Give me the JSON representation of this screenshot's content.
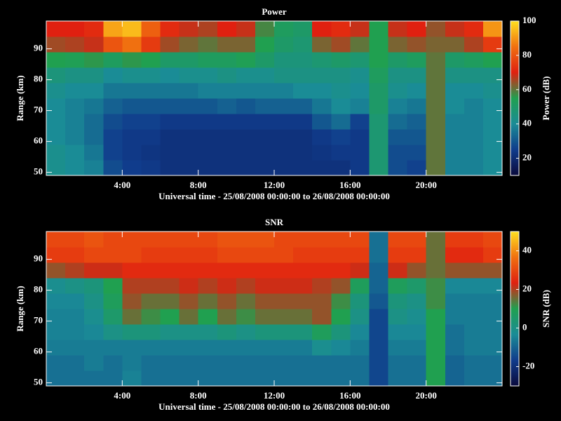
{
  "chart_data": [
    {
      "type": "heatmap",
      "title": "Power",
      "xlabel": "Universal time - 25/08/2008 00:00:00 to 26/08/2008 00:00:00",
      "ylabel": "Range (km)",
      "x_bins": [
        0,
        1,
        2,
        3,
        4,
        5,
        6,
        7,
        8,
        9,
        10,
        11,
        12,
        13,
        14,
        15,
        16,
        17,
        18,
        19,
        20,
        21,
        22,
        23,
        24
      ],
      "y_bins": [
        49,
        54,
        59,
        64,
        69,
        74,
        79,
        84,
        89,
        94,
        99
      ],
      "z": [
        [
          42,
          40,
          38,
          28,
          25,
          24,
          22,
          22,
          22,
          22,
          22,
          22,
          22,
          22,
          22,
          22,
          24,
          48,
          28,
          26,
          60,
          38,
          38,
          40
        ],
        [
          42,
          40,
          36,
          26,
          24,
          23,
          22,
          22,
          22,
          22,
          22,
          22,
          22,
          22,
          23,
          24,
          24,
          48,
          28,
          28,
          60,
          38,
          38,
          40
        ],
        [
          40,
          38,
          34,
          26,
          24,
          24,
          22,
          22,
          22,
          22,
          22,
          22,
          22,
          22,
          24,
          26,
          24,
          48,
          30,
          30,
          60,
          38,
          38,
          40
        ],
        [
          40,
          38,
          34,
          28,
          26,
          26,
          24,
          24,
          24,
          24,
          24,
          24,
          24,
          24,
          30,
          34,
          26,
          48,
          34,
          32,
          60,
          38,
          38,
          40
        ],
        [
          40,
          38,
          36,
          32,
          30,
          30,
          30,
          30,
          30,
          32,
          30,
          32,
          32,
          32,
          36,
          40,
          38,
          50,
          38,
          36,
          60,
          40,
          38,
          40
        ],
        [
          42,
          40,
          40,
          36,
          36,
          36,
          36,
          36,
          38,
          38,
          38,
          38,
          38,
          40,
          40,
          42,
          40,
          50,
          42,
          40,
          60,
          40,
          40,
          42
        ],
        [
          46,
          44,
          44,
          40,
          42,
          42,
          40,
          42,
          42,
          44,
          42,
          42,
          44,
          44,
          44,
          44,
          42,
          52,
          44,
          44,
          60,
          44,
          44,
          44
        ],
        [
          55,
          54,
          56,
          52,
          56,
          55,
          50,
          50,
          52,
          52,
          54,
          50,
          46,
          46,
          48,
          50,
          48,
          55,
          50,
          52,
          60,
          50,
          52,
          55
        ],
        [
          65,
          66,
          68,
          80,
          85,
          75,
          65,
          62,
          60,
          62,
          62,
          55,
          50,
          48,
          62,
          65,
          60,
          55,
          62,
          64,
          62,
          62,
          66,
          75
        ],
        [
          70,
          70,
          72,
          92,
          95,
          82,
          72,
          68,
          66,
          70,
          68,
          58,
          52,
          50,
          70,
          72,
          68,
          55,
          68,
          70,
          64,
          68,
          72,
          90
        ]
      ],
      "xlim": [
        0,
        24
      ],
      "ylim": [
        49,
        99
      ],
      "xticks": [
        {
          "value": 4,
          "label": "4:00"
        },
        {
          "value": 8,
          "label": "8:00"
        },
        {
          "value": 12,
          "label": "12:00"
        },
        {
          "value": 16,
          "label": "16:00"
        },
        {
          "value": 20,
          "label": "20:00"
        }
      ],
      "yticks": [
        50,
        60,
        70,
        80,
        90
      ],
      "colorscale": [
        "#0a0a3c",
        "#103c8c",
        "#1a8c96",
        "#20a050",
        "#e02010",
        "#f07010",
        "#ffe020"
      ],
      "colorbar": {
        "label": "Power (dB)",
        "lim": [
          10,
          100
        ],
        "ticks": [
          20,
          40,
          60,
          80,
          100
        ]
      }
    },
    {
      "type": "heatmap",
      "title": "SNR",
      "xlabel": "Universal time - 25/08/2008 00:00:00 to 26/08/2008 00:00:00",
      "ylabel": "Range (km)",
      "x_bins": [
        0,
        1,
        2,
        3,
        4,
        5,
        6,
        7,
        8,
        9,
        10,
        11,
        12,
        13,
        14,
        15,
        16,
        17,
        18,
        19,
        20,
        21,
        22,
        23,
        24
      ],
      "y_bins": [
        49,
        54,
        59,
        64,
        69,
        74,
        79,
        84,
        89,
        94,
        99
      ],
      "z": [
        [
          -8,
          -8,
          -8,
          -8,
          -5,
          -8,
          -8,
          -8,
          -8,
          -8,
          -8,
          -8,
          -8,
          -8,
          -8,
          -8,
          -8,
          -15,
          -8,
          -8,
          10,
          -10,
          -8,
          -8
        ],
        [
          -8,
          -8,
          -6,
          -8,
          -6,
          -8,
          -8,
          -8,
          -8,
          -8,
          -8,
          -8,
          -8,
          -8,
          -8,
          -8,
          -8,
          -15,
          -8,
          -8,
          10,
          -10,
          -8,
          -8
        ],
        [
          -6,
          -6,
          -6,
          -6,
          -6,
          -6,
          -6,
          -6,
          -6,
          -6,
          -6,
          -6,
          -6,
          -6,
          -2,
          -4,
          -6,
          -15,
          -6,
          -6,
          10,
          -8,
          -6,
          -6
        ],
        [
          -5,
          -5,
          -4,
          0,
          2,
          2,
          0,
          0,
          0,
          2,
          0,
          2,
          2,
          2,
          8,
          2,
          -4,
          -15,
          -4,
          -4,
          10,
          -8,
          -6,
          -6
        ],
        [
          -5,
          -5,
          -2,
          5,
          15,
          12,
          10,
          15,
          10,
          15,
          12,
          15,
          15,
          15,
          18,
          10,
          0,
          -15,
          0,
          -2,
          10,
          -6,
          -6,
          -6
        ],
        [
          -4,
          -4,
          0,
          8,
          18,
          15,
          15,
          18,
          15,
          18,
          15,
          18,
          18,
          18,
          18,
          12,
          2,
          -12,
          2,
          0,
          12,
          -6,
          -6,
          -6
        ],
        [
          -2,
          0,
          2,
          10,
          20,
          20,
          20,
          22,
          20,
          22,
          20,
          22,
          22,
          22,
          20,
          18,
          8,
          -10,
          8,
          5,
          12,
          -4,
          -4,
          -4
        ],
        [
          18,
          20,
          22,
          22,
          25,
          25,
          25,
          25,
          25,
          25,
          25,
          25,
          25,
          25,
          25,
          25,
          22,
          -10,
          22,
          18,
          15,
          18,
          18,
          18
        ],
        [
          28,
          28,
          30,
          30,
          30,
          28,
          28,
          28,
          28,
          30,
          30,
          30,
          30,
          28,
          28,
          28,
          28,
          -8,
          28,
          28,
          15,
          25,
          25,
          28
        ],
        [
          30,
          30,
          32,
          30,
          30,
          30,
          30,
          30,
          30,
          32,
          32,
          32,
          30,
          30,
          30,
          30,
          30,
          -8,
          30,
          30,
          15,
          28,
          28,
          30
        ]
      ],
      "xlim": [
        0,
        24
      ],
      "ylim": [
        49,
        99
      ],
      "xticks": [
        {
          "value": 4,
          "label": "4:00"
        },
        {
          "value": 8,
          "label": "8:00"
        },
        {
          "value": 12,
          "label": "12:00"
        },
        {
          "value": 16,
          "label": "16:00"
        },
        {
          "value": 20,
          "label": "20:00"
        }
      ],
      "yticks": [
        50,
        60,
        70,
        80,
        90
      ],
      "colorscale": [
        "#0a0a3c",
        "#103c8c",
        "#1a8c96",
        "#20a050",
        "#e02010",
        "#f07010",
        "#ffe020"
      ],
      "colorbar": {
        "label": "SNR (dB)",
        "lim": [
          -30,
          50
        ],
        "ticks": [
          -20,
          0,
          20,
          40
        ]
      }
    }
  ]
}
